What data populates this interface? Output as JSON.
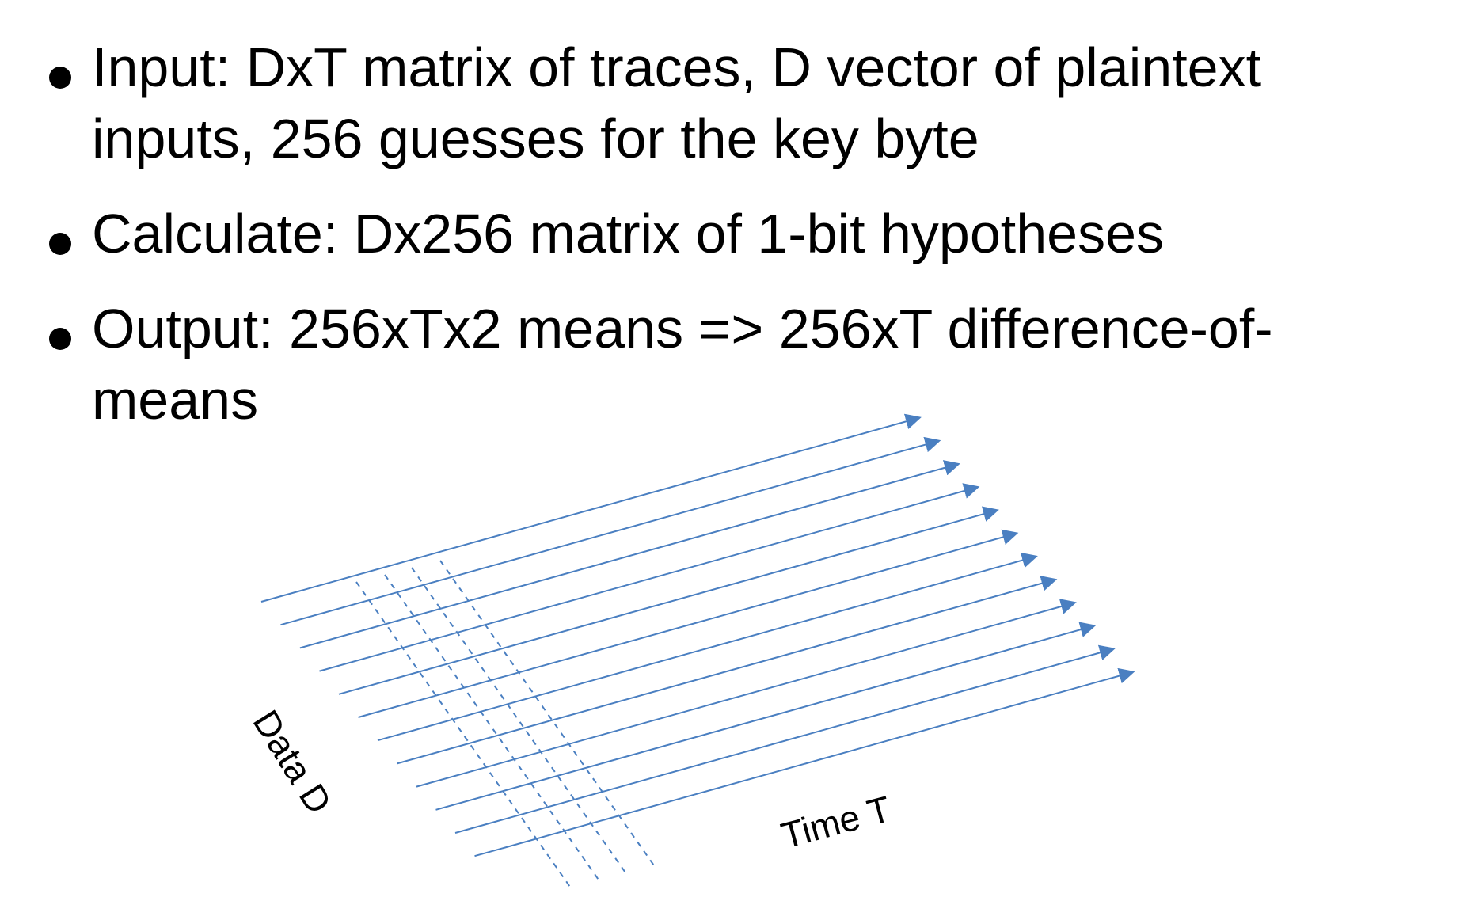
{
  "bullets": [
    {
      "text": "Input: DxT matrix of traces, D vector of plaintext inputs, 256 guesses for the key byte"
    },
    {
      "text": "Calculate: Dx256 matrix of 1-bit hypotheses"
    },
    {
      "text": "Output: 256xTx2 means => 256xT difference-of-means"
    }
  ],
  "diagram": {
    "time_label": "Time T",
    "data_label": "Data D",
    "trace_count": 12,
    "dashed_column_count": 4,
    "line_color": "#4a7fc1"
  }
}
